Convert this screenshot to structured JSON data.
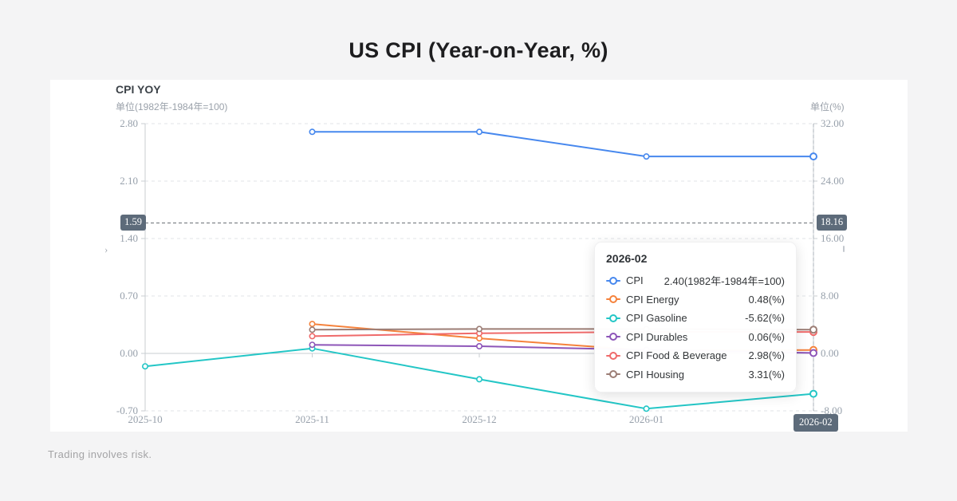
{
  "page": {
    "title": "US CPI (Year-on-Year, %)",
    "disclaimer": "Trading involves risk."
  },
  "colors": {
    "badge_bg": "#5d6b7a",
    "grid_line": "#e0e3e7",
    "axis_line": "#c9cdd2",
    "axis_text": "#97a0ab",
    "marker_line": "#6b7076",
    "pointer_line": "#aab0b8"
  },
  "chart": {
    "title": "CPI YOY",
    "left_axis_unit": "单位(1982年-1984年=100)",
    "right_axis_unit": "单位(%)",
    "marker_left_label": "1.59",
    "marker_right_label": "18.16",
    "x_pointer_label": "2026-02",
    "scroll_hint_left": "›"
  },
  "chart_data": {
    "type": "line",
    "title": "CPI YOY",
    "categories": [
      "2025-10",
      "2025-11",
      "2025-12",
      "2026-01",
      "2026-02"
    ],
    "left_axis": {
      "unit": "单位(1982年-1984年=100)",
      "min": -0.7,
      "max": 2.8,
      "ticks": [
        2.8,
        2.1,
        1.4,
        0.7,
        0.0,
        -0.7
      ]
    },
    "right_axis": {
      "unit": "单位(%)",
      "min": -8.0,
      "max": 32.0,
      "ticks": [
        32.0,
        24.0,
        16.0,
        8.0,
        0.0,
        -8.0
      ]
    },
    "grid": true,
    "legend_position": "none",
    "hovered_category": "2026-02",
    "marker_line": {
      "left_value": 1.59,
      "right_value": 18.16
    },
    "series": [
      {
        "name": "CPI",
        "axis": "left",
        "color": "#4788ee",
        "values": [
          null,
          2.7,
          2.7,
          2.4,
          2.4
        ]
      },
      {
        "name": "CPI Energy",
        "axis": "right",
        "color": "#f5823c",
        "values": [
          null,
          4.1,
          2.1,
          0.4,
          0.48
        ]
      },
      {
        "name": "CPI Gasoline",
        "axis": "right",
        "color": "#23c6c6",
        "values": [
          -1.8,
          0.7,
          -3.6,
          -7.7,
          -5.62
        ]
      },
      {
        "name": "CPI Durables",
        "axis": "right",
        "color": "#8d55b8",
        "values": [
          null,
          1.2,
          1.0,
          0.5,
          0.06
        ]
      },
      {
        "name": "CPI Food & Beverage",
        "axis": "right",
        "color": "#ef6a6a",
        "values": [
          null,
          2.4,
          2.8,
          3.0,
          2.98
        ]
      },
      {
        "name": "CPI Housing",
        "axis": "right",
        "color": "#9c7d75",
        "values": [
          null,
          3.3,
          3.4,
          3.4,
          3.31
        ]
      }
    ]
  },
  "tooltip": {
    "title": "2026-02",
    "rows": [
      {
        "label": "CPI",
        "value": "2.40(1982年-1984年=100)",
        "color": "#4788ee"
      },
      {
        "label": "CPI Energy",
        "value": "0.48(%)",
        "color": "#f5823c"
      },
      {
        "label": "CPI Gasoline",
        "value": "-5.62(%)",
        "color": "#23c6c6"
      },
      {
        "label": "CPI Durables",
        "value": "0.06(%)",
        "color": "#8d55b8"
      },
      {
        "label": "CPI Food & Beverage",
        "value": "2.98(%)",
        "color": "#ef6a6a"
      },
      {
        "label": "CPI Housing",
        "value": "3.31(%)",
        "color": "#9c7d75"
      }
    ]
  }
}
